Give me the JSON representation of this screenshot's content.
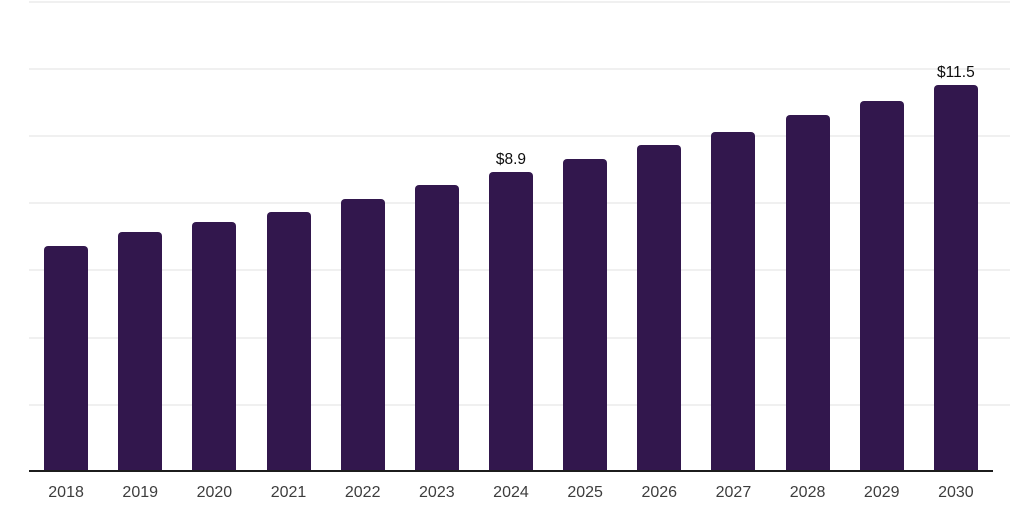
{
  "chart_data": {
    "type": "bar",
    "title": "",
    "xlabel": "",
    "ylabel": "",
    "categories": [
      "2018",
      "2019",
      "2020",
      "2021",
      "2022",
      "2023",
      "2024",
      "2025",
      "2026",
      "2027",
      "2028",
      "2029",
      "2030"
    ],
    "values": [
      6.7,
      7.1,
      7.4,
      7.7,
      8.1,
      8.5,
      8.9,
      9.3,
      9.7,
      10.1,
      10.6,
      11.0,
      11.5
    ],
    "data_labels": {
      "2024": "$8.9",
      "2030": "$11.5"
    },
    "ylim": [
      0,
      14
    ],
    "gridline_step": 2,
    "grid": "horizontal-only",
    "legend_position": "none",
    "y_axis_tick_labels_visible": false,
    "colors": {
      "bar": "#32174d",
      "gridline": "#f0f0f0",
      "axis_line": "#1c1c1c",
      "tick_label": "#3d3d3d",
      "data_label": "#0d0d0d",
      "background": "#ffffff"
    }
  }
}
